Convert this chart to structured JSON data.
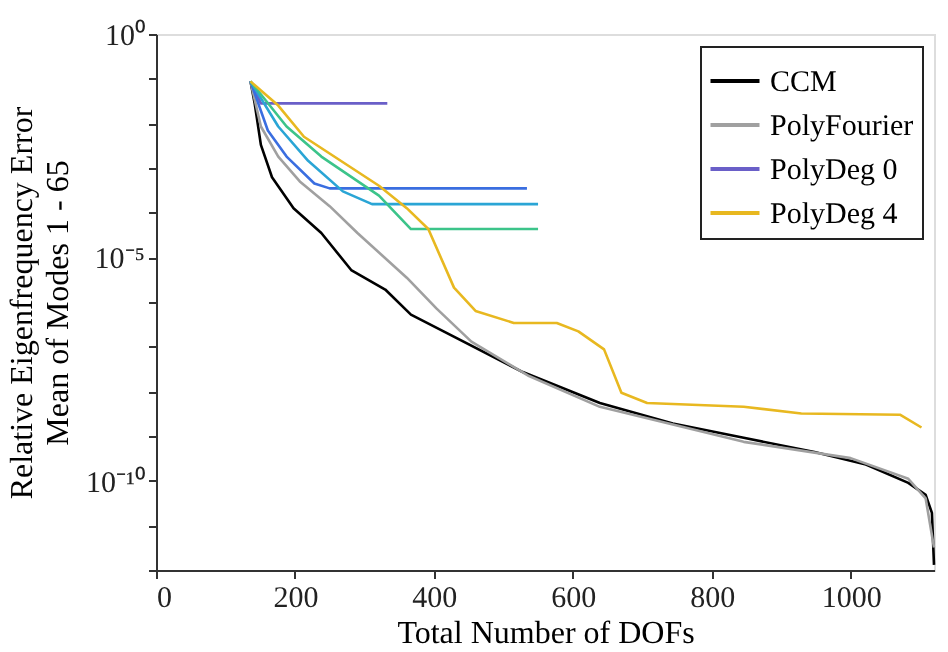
{
  "chart_data": {
    "type": "line",
    "xlabel": "Total Number of DOFs",
    "ylabel": "Relative Eigenfrequency Error\nMean of Modes 1 - 65",
    "log": "y",
    "grid": false,
    "legend": "top right",
    "marker": "none",
    "line_style": "solid",
    "xlim": [
      0,
      1120
    ],
    "xticks": [
      0,
      200,
      400,
      600,
      800,
      1000
    ],
    "ylim": [
      1e-12,
      1
    ],
    "yticks": [
      {
        "value": 1,
        "label": "10⁰"
      },
      {
        "value": 0.1,
        "label": null
      },
      {
        "value": 0.01,
        "label": null
      },
      {
        "value": 0.001,
        "label": null
      },
      {
        "value": 0.0001,
        "label": null
      },
      {
        "value": 1e-05,
        "label": "10⁻⁵"
      },
      {
        "value": 1e-06,
        "label": null
      },
      {
        "value": 1e-07,
        "label": null
      },
      {
        "value": 1e-08,
        "label": null
      },
      {
        "value": 1e-09,
        "label": null
      },
      {
        "value": 1e-10,
        "label": "10⁻¹⁰"
      },
      {
        "value": 1e-11,
        "label": null
      },
      {
        "value": 1e-12,
        "label": null
      }
    ],
    "series": [
      {
        "name": "CCM",
        "color": "#000000",
        "x": [
          136,
          142,
          151,
          167,
          198,
          238,
          281,
          330,
          367,
          414,
          528,
          639,
          744,
          846,
          948,
          1022,
          1083,
          1108,
          1117,
          1120
        ],
        "values": [
          0.087,
          0.028,
          0.0033,
          0.00062,
          0.000126,
          3.5e-05,
          5.2e-06,
          1.9e-06,
          5.2e-07,
          2.2e-07,
          2.7e-08,
          5.5e-09,
          1.9e-09,
          9.1e-10,
          4.4e-10,
          2.3e-10,
          8.9e-11,
          4.8e-11,
          1.9e-11,
          1.3e-12
        ]
      },
      {
        "name": "PolyFourier",
        "color": "#a0a0a0",
        "x": [
          136,
          151,
          176,
          207,
          250,
          290,
          361,
          404,
          454,
          537,
          639,
          846,
          1000,
          1083,
          1108,
          1120
        ],
        "values": [
          0.087,
          0.0085,
          0.0018,
          0.0005,
          0.00014,
          3.5e-05,
          3.5e-06,
          7.1e-07,
          1.3e-07,
          2.2e-08,
          4.5e-09,
          7.4e-10,
          3.2e-10,
          1.1e-10,
          4e-11,
          3.2e-12
        ]
      },
      {
        "name": "PolyDeg 0",
        "color": "#6a5fc8",
        "x": [
          136,
          151,
          333
        ],
        "values": [
          0.087,
          0.028,
          0.028
        ]
      },
      {
        "color": "#3a6ee0",
        "x": [
          136,
          161,
          188,
          228,
          250,
          534
        ],
        "values": [
          0.087,
          0.0069,
          0.0018,
          0.00045,
          0.00035,
          0.00035
        ]
      },
      {
        "color": "#2aa5d5",
        "x": [
          136,
          176,
          219,
          269,
          311,
          550
        ],
        "values": [
          0.087,
          0.0085,
          0.00145,
          0.0003,
          0.000155,
          0.000155
        ]
      },
      {
        "color": "#3cc48a",
        "x": [
          136,
          188,
          238,
          321,
          367,
          550
        ],
        "values": [
          0.087,
          0.0085,
          0.0018,
          0.00024,
          4.3e-05,
          4.3e-05
        ]
      },
      {
        "name": "PolyDeg 4",
        "color": "#e8b820",
        "x": [
          136,
          176,
          213,
          321,
          361,
          392,
          429,
          460,
          515,
          577,
          608,
          645,
          670,
          707,
          846,
          929,
          1071,
          1102
        ],
        "values": [
          0.087,
          0.025,
          0.005,
          0.0004,
          0.000126,
          4.3e-05,
          2.1e-06,
          6.3e-07,
          3.4e-07,
          3.4e-07,
          2.2e-07,
          8.7e-08,
          9.3e-09,
          5.5e-09,
          4.5e-09,
          3.2e-09,
          3e-09,
          1.55e-09
        ]
      }
    ]
  }
}
